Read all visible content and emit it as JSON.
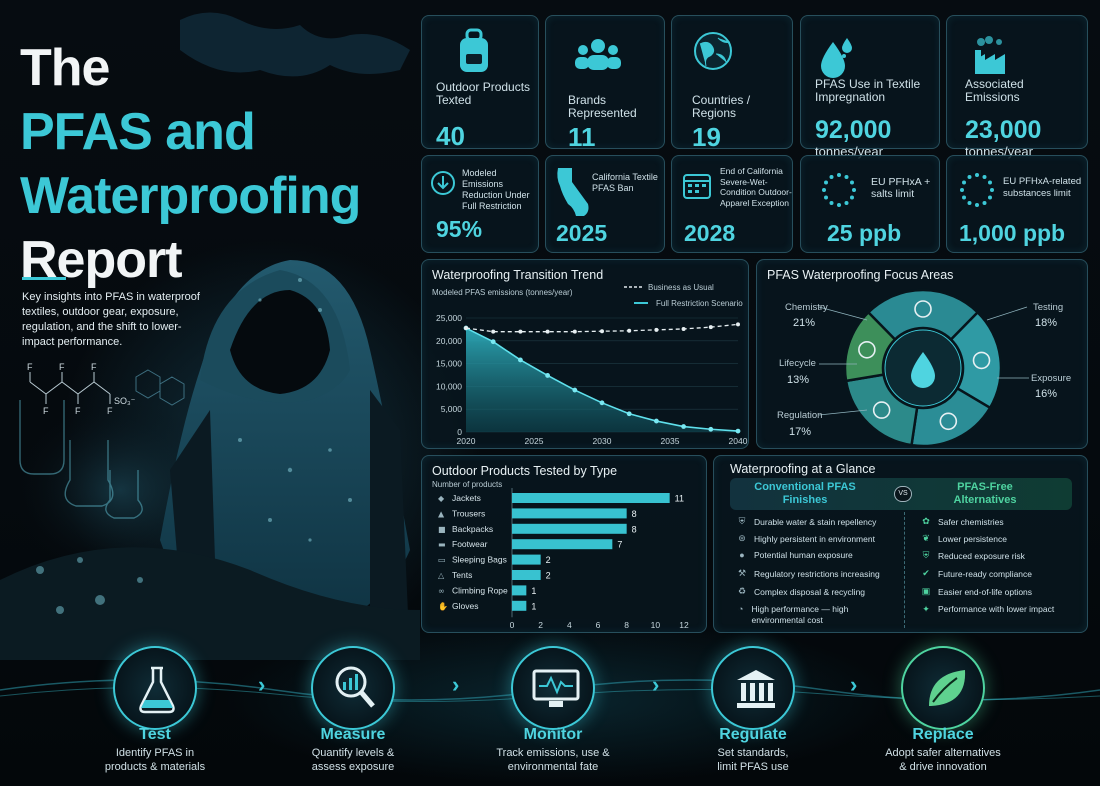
{
  "title": {
    "line1": "The",
    "line2": "PFAS and",
    "line3": "Waterproofing",
    "line4": "Report"
  },
  "intro": "Key insights into PFAS in waterproof textiles, outdoor gear, exposure, regulation, and the shift to lower-impact performance.",
  "chem_labels": {
    "f": "F",
    "so3": "SO₃⁻"
  },
  "stats_top": [
    {
      "label": "Outdoor Products Texted",
      "value": "40",
      "sub": "",
      "icon": "backpack-icon"
    },
    {
      "label": "Brands Represented",
      "value": "11",
      "sub": "",
      "icon": "people-icon"
    },
    {
      "label": "Countries / Regions",
      "value": "19",
      "sub": "",
      "icon": "globe-icon"
    },
    {
      "label": "PFAS Use in Textile Impregnation",
      "value": "92,000",
      "sub": "tonnes/year",
      "icon": "droplets-icon"
    },
    {
      "label": "Associated Emissions",
      "value": "23,000",
      "sub": "tonnes/year",
      "icon": "factory-icon"
    }
  ],
  "stats_bottom": [
    {
      "label": "Modeled Emissions Reduction Under Full Restriction",
      "value": "95%",
      "icon": "down-arrow-icon"
    },
    {
      "label": "California Textile PFAS Ban",
      "value": "2025",
      "icon": "california-icon"
    },
    {
      "label": "End of California Severe-Wet-Condition Outdoor-Apparel Exception",
      "value": "2028",
      "icon": "calendar-icon"
    },
    {
      "label": "EU PFHxA + salts limit",
      "value": "25 ppb",
      "icon": "eu-stars-icon"
    },
    {
      "label": "EU PFHxA-related substances limit",
      "value": "1,000 ppb",
      "icon": "eu-stars-icon"
    }
  ],
  "trend": {
    "title": "Waterproofing Transition Trend",
    "subtitle": "Modeled PFAS emissions (tonnes/year)",
    "legend_bau": "Business as Usual",
    "legend_full": "Full Restriction Scenario"
  },
  "focus": {
    "title": "PFAS Waterproofing Focus Areas",
    "slices": [
      {
        "name": "Chemistry",
        "pct": "21%",
        "color": "#2a8a93"
      },
      {
        "name": "Testing",
        "pct": "18%",
        "color": "#2f9aa4"
      },
      {
        "name": "Exposure",
        "pct": "16%",
        "color": "#2b8d96"
      },
      {
        "name": "Regulation",
        "pct": "17%",
        "color": "#2c8a8a"
      },
      {
        "name": "Lifecycle",
        "pct": "13%",
        "color": "#3d8f5a"
      }
    ]
  },
  "products": {
    "title": "Outdoor Products Tested by Type",
    "subtitle": "Number of products"
  },
  "glance": {
    "title": "Waterproofing at a Glance",
    "left_head": "Conventional PFAS Finishes",
    "vs": "VS",
    "right_head": "PFAS-Free Alternatives",
    "left": [
      "Durable water & stain repellency",
      "Highly persistent in environment",
      "Potential human exposure",
      "Regulatory restrictions increasing",
      "Complex disposal & recycling",
      "High performance — high environmental cost"
    ],
    "right": [
      "Safer chemistries",
      "Lower persistence",
      "Reduced exposure risk",
      "Future-ready compliance",
      "Easier end-of-life options",
      "Performance with lower impact"
    ]
  },
  "steps": [
    {
      "name": "Test",
      "desc": "Identify PFAS in products & materials",
      "icon": "flask-icon"
    },
    {
      "name": "Measure",
      "desc": "Quantify levels & assess exposure",
      "icon": "magnifier-chart-icon"
    },
    {
      "name": "Monitor",
      "desc": "Track emissions, use & environmental fate",
      "icon": "monitor-icon"
    },
    {
      "name": "Regulate",
      "desc": "Set standards, limit PFAS use",
      "icon": "courthouse-icon"
    },
    {
      "name": "Replace",
      "desc": "Adopt safer alternatives & drive innovation",
      "icon": "leaf-icon"
    }
  ],
  "chart_data": [
    {
      "type": "line",
      "title": "Waterproofing Transition Trend",
      "ylabel": "Modeled PFAS emissions (tonnes/year)",
      "x": [
        2020,
        2022,
        2024,
        2026,
        2028,
        2030,
        2032,
        2034,
        2036,
        2038,
        2040
      ],
      "x_ticks": [
        2020,
        2025,
        2030,
        2035,
        2040
      ],
      "y_ticks": [
        0,
        5000,
        10000,
        15000,
        20000,
        25000
      ],
      "ylim": [
        0,
        25000
      ],
      "series": [
        {
          "name": "Business as Usual",
          "values": [
            22800,
            22000,
            22000,
            22000,
            22000,
            22100,
            22200,
            22400,
            22600,
            23000,
            23600
          ]
        },
        {
          "name": "Full Restriction Scenario",
          "values": [
            22800,
            19800,
            15800,
            12400,
            9200,
            6400,
            4000,
            2400,
            1200,
            600,
            200
          ]
        }
      ]
    },
    {
      "type": "pie",
      "title": "PFAS Waterproofing Focus Areas",
      "categories": [
        "Chemistry",
        "Testing",
        "Exposure",
        "Regulation",
        "Lifecycle"
      ],
      "values": [
        21,
        18,
        16,
        17,
        13
      ]
    },
    {
      "type": "bar",
      "title": "Outdoor Products Tested by Type",
      "xlabel": "Number of products",
      "categories": [
        "Jackets",
        "Trousers",
        "Backpacks",
        "Footwear",
        "Sleeping Bags",
        "Tents",
        "Climbing Rope",
        "Gloves"
      ],
      "values": [
        11,
        8,
        8,
        7,
        2,
        2,
        1,
        1
      ],
      "x_ticks": [
        0,
        2,
        4,
        6,
        8,
        10,
        12
      ],
      "xlim": [
        0,
        12
      ]
    }
  ]
}
